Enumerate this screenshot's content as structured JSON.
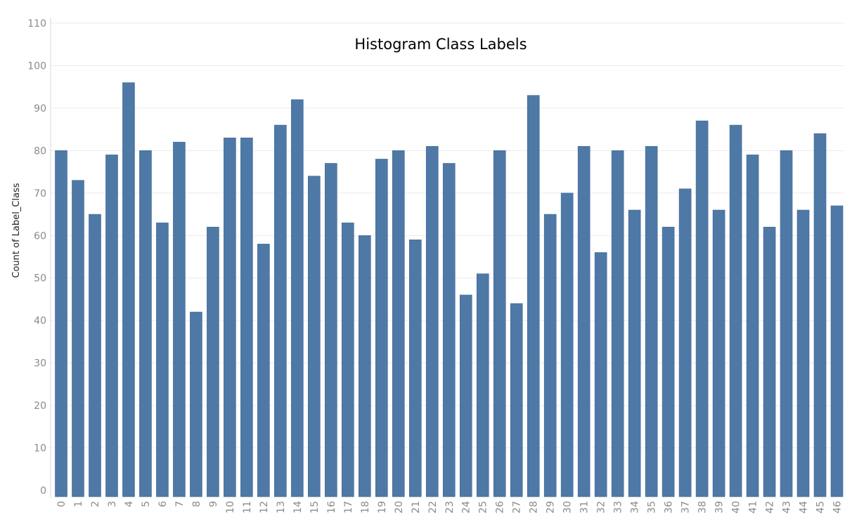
{
  "chart_data": {
    "type": "bar",
    "title": "Histogram Class Labels",
    "xlabel": "",
    "ylabel": "Count of Label_Class",
    "ylim": [
      0,
      110
    ],
    "yticks": [
      0,
      10,
      20,
      30,
      40,
      50,
      60,
      70,
      80,
      90,
      100,
      110
    ],
    "grid": true,
    "legend": "none",
    "bar_color": "#4e79a7",
    "categories": [
      "0",
      "1",
      "2",
      "3",
      "4",
      "5",
      "6",
      "7",
      "8",
      "9",
      "10",
      "11",
      "12",
      "13",
      "14",
      "15",
      "16",
      "17",
      "18",
      "19",
      "20",
      "21",
      "22",
      "23",
      "24",
      "25",
      "26",
      "27",
      "28",
      "29",
      "30",
      "31",
      "32",
      "33",
      "34",
      "35",
      "36",
      "37",
      "38",
      "39",
      "40",
      "41",
      "42",
      "43",
      "44",
      "45",
      "46"
    ],
    "values": [
      80,
      73,
      65,
      79,
      96,
      80,
      63,
      82,
      42,
      62,
      83,
      83,
      58,
      86,
      92,
      74,
      77,
      63,
      60,
      78,
      80,
      59,
      81,
      77,
      46,
      51,
      80,
      44,
      93,
      65,
      70,
      81,
      56,
      80,
      66,
      81,
      62,
      71,
      87,
      66,
      86,
      79,
      62,
      80,
      66,
      84,
      67
    ]
  }
}
